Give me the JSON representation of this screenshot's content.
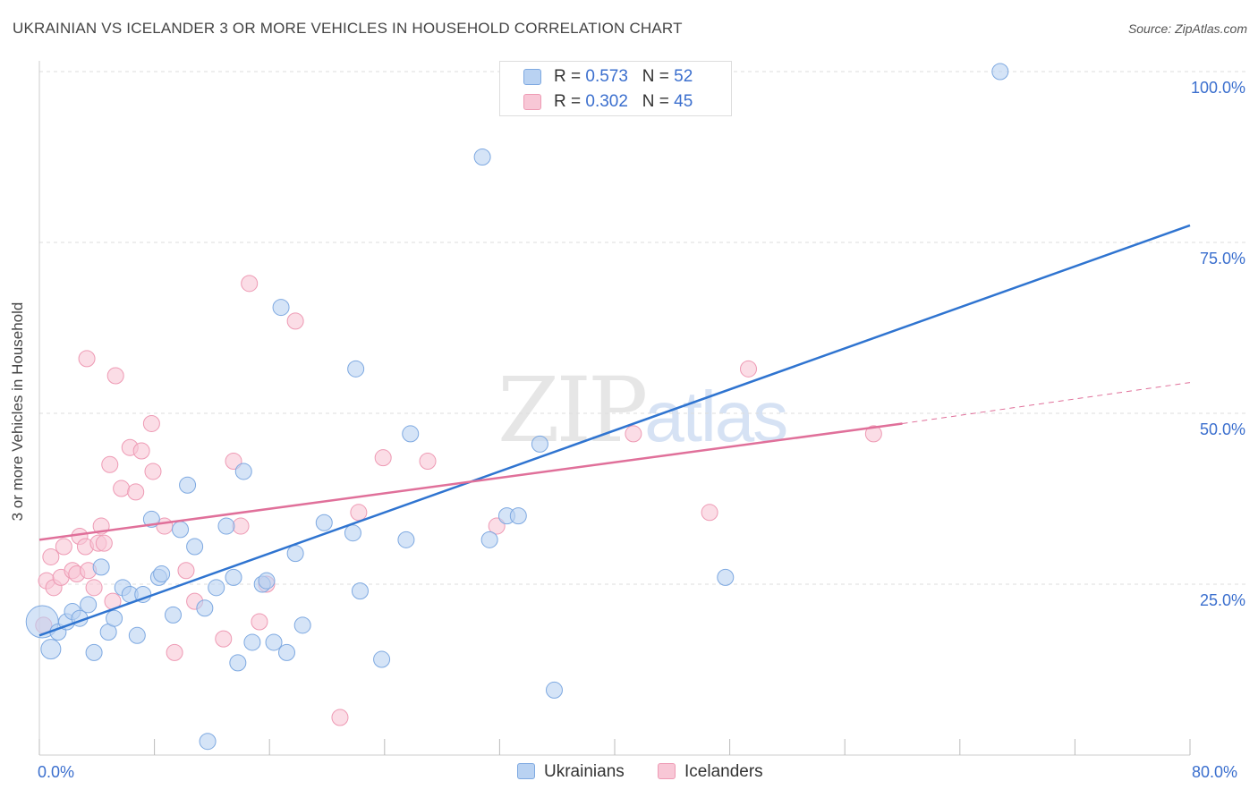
{
  "header": {
    "title": "UKRAINIAN VS ICELANDER 3 OR MORE VEHICLES IN HOUSEHOLD CORRELATION CHART",
    "source": "Source: ZipAtlas.com"
  },
  "watermark": {
    "zip": "ZIP",
    "atlas": "atlas"
  },
  "legend_top": {
    "rows": [
      {
        "r_label": "R =",
        "r_value": "0.573",
        "n_label": "N =",
        "n_value": "52"
      },
      {
        "r_label": "R =",
        "r_value": "0.302",
        "n_label": "N =",
        "n_value": "45"
      }
    ]
  },
  "legend_bottom": {
    "series1": "Ukrainians",
    "series2": "Icelanders"
  },
  "colors": {
    "blue_fill": "#b9d2f2",
    "blue_stroke": "#7ea9e1",
    "blue_line": "#2f74d0",
    "pink_fill": "#f8c7d6",
    "pink_stroke": "#ee9ab4",
    "pink_line": "#e0709a",
    "tick_label": "#3b6fce",
    "grid": "#dddddd"
  },
  "chart_data": {
    "type": "scatter",
    "title": "UKRAINIAN VS ICELANDER 3 OR MORE VEHICLES IN HOUSEHOLD CORRELATION CHART",
    "xlabel": "",
    "ylabel": "3 or more Vehicles in Household",
    "x_min_label": "0.0%",
    "x_max_label": "80.0%",
    "xlim": [
      0,
      80
    ],
    "ylim": [
      0,
      100
    ],
    "y_ticks": [
      {
        "value": 25,
        "label": "25.0%"
      },
      {
        "value": 50,
        "label": "50.0%"
      },
      {
        "value": 75,
        "label": "75.0%"
      },
      {
        "value": 100,
        "label": "100.0%"
      }
    ],
    "series": [
      {
        "name": "Ukrainians",
        "r": 0.573,
        "n": 52,
        "trend": {
          "x0": 0,
          "y0": 17.5,
          "x1": 80,
          "y1": 77.5
        },
        "points": [
          [
            0.2,
            19.5,
            18
          ],
          [
            0.8,
            15.5,
            11
          ],
          [
            1.3,
            18.0,
            9
          ],
          [
            1.9,
            19.5,
            9
          ],
          [
            2.3,
            21.0,
            9
          ],
          [
            2.8,
            20.0,
            9
          ],
          [
            3.4,
            22.0,
            9
          ],
          [
            3.8,
            15.0,
            9
          ],
          [
            4.3,
            27.5,
            9
          ],
          [
            4.8,
            18.0,
            9
          ],
          [
            5.2,
            20.0,
            9
          ],
          [
            5.8,
            24.5,
            9
          ],
          [
            6.3,
            23.5,
            9
          ],
          [
            6.8,
            17.5,
            9
          ],
          [
            7.2,
            23.5,
            9
          ],
          [
            7.8,
            34.5,
            9
          ],
          [
            8.3,
            26.0,
            9
          ],
          [
            8.5,
            26.5,
            9
          ],
          [
            9.3,
            20.5,
            9
          ],
          [
            9.8,
            33.0,
            9
          ],
          [
            10.3,
            39.5,
            9
          ],
          [
            10.8,
            30.5,
            9
          ],
          [
            11.5,
            21.5,
            9
          ],
          [
            11.7,
            2.0,
            9
          ],
          [
            12.3,
            24.5,
            9
          ],
          [
            13.0,
            33.5,
            9
          ],
          [
            13.5,
            26.0,
            9
          ],
          [
            13.8,
            13.5,
            9
          ],
          [
            14.2,
            41.5,
            9
          ],
          [
            14.8,
            16.5,
            9
          ],
          [
            15.5,
            25.0,
            9
          ],
          [
            15.8,
            25.5,
            9
          ],
          [
            16.3,
            16.5,
            9
          ],
          [
            16.8,
            65.5,
            9
          ],
          [
            17.2,
            15.0,
            9
          ],
          [
            17.8,
            29.5,
            9
          ],
          [
            18.3,
            19.0,
            9
          ],
          [
            19.8,
            34.0,
            9
          ],
          [
            21.8,
            32.5,
            9
          ],
          [
            22.0,
            56.5,
            9
          ],
          [
            22.3,
            24.0,
            9
          ],
          [
            23.8,
            14.0,
            9
          ],
          [
            25.5,
            31.5,
            9
          ],
          [
            25.8,
            47.0,
            9
          ],
          [
            30.8,
            87.5,
            9
          ],
          [
            31.3,
            31.5,
            9
          ],
          [
            32.5,
            35.0,
            9
          ],
          [
            33.3,
            35.0,
            9
          ],
          [
            34.8,
            45.5,
            9
          ],
          [
            35.8,
            9.5,
            9
          ],
          [
            47.7,
            26.0,
            9
          ],
          [
            66.8,
            100.0,
            9
          ]
        ]
      },
      {
        "name": "Icelanders",
        "r": 0.302,
        "n": 45,
        "trend": {
          "x0": 0,
          "y0": 31.5,
          "x1": 60,
          "y1": 48.5,
          "dash_x1": 80,
          "dash_y1": 54.5
        },
        "points": [
          [
            0.3,
            19.0,
            9
          ],
          [
            0.5,
            25.5,
            9
          ],
          [
            0.8,
            29.0,
            9
          ],
          [
            1.0,
            24.5,
            9
          ],
          [
            1.5,
            26.0,
            9
          ],
          [
            1.7,
            30.5,
            9
          ],
          [
            2.3,
            27.0,
            9
          ],
          [
            2.6,
            26.5,
            9
          ],
          [
            2.8,
            32.0,
            9
          ],
          [
            3.2,
            30.5,
            9
          ],
          [
            3.4,
            27.0,
            9
          ],
          [
            3.3,
            58.0,
            9
          ],
          [
            3.8,
            24.5,
            9
          ],
          [
            4.1,
            31.0,
            9
          ],
          [
            4.3,
            33.5,
            9
          ],
          [
            4.5,
            31.0,
            9
          ],
          [
            4.9,
            42.5,
            9
          ],
          [
            5.1,
            22.5,
            9
          ],
          [
            5.3,
            55.5,
            9
          ],
          [
            5.7,
            39.0,
            9
          ],
          [
            6.3,
            45.0,
            9
          ],
          [
            6.7,
            38.5,
            9
          ],
          [
            7.1,
            44.5,
            9
          ],
          [
            7.8,
            48.5,
            9
          ],
          [
            7.9,
            41.5,
            9
          ],
          [
            8.7,
            33.5,
            9
          ],
          [
            9.4,
            15.0,
            9
          ],
          [
            10.2,
            27.0,
            9
          ],
          [
            10.8,
            22.5,
            9
          ],
          [
            12.8,
            17.0,
            9
          ],
          [
            13.5,
            43.0,
            9
          ],
          [
            14.0,
            33.5,
            9
          ],
          [
            14.6,
            69.0,
            9
          ],
          [
            15.3,
            19.5,
            9
          ],
          [
            15.8,
            25.0,
            9
          ],
          [
            17.8,
            63.5,
            9
          ],
          [
            20.9,
            5.5,
            9
          ],
          [
            22.2,
            35.5,
            9
          ],
          [
            23.9,
            43.5,
            9
          ],
          [
            27.0,
            43.0,
            9
          ],
          [
            31.8,
            33.5,
            9
          ],
          [
            41.3,
            47.0,
            9
          ],
          [
            46.6,
            35.5,
            9
          ],
          [
            49.3,
            56.5,
            9
          ],
          [
            58.0,
            47.0,
            9
          ]
        ]
      }
    ]
  }
}
